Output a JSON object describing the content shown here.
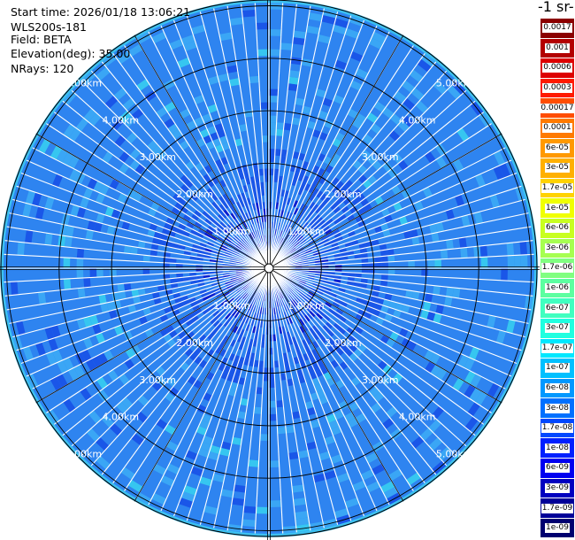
{
  "header": {
    "start_time": "Start time: 2026/01/18 13:06:21",
    "instrument": "WLS200s-181",
    "field": "Field: BETA",
    "elevation": "Elevation(deg): 35.00",
    "nrays": "NRays: 120"
  },
  "colorbar": {
    "unit_label": "-1 sr-",
    "levels": [
      {
        "label": "0.0017",
        "color": "#8b0000"
      },
      {
        "label": "0.001",
        "color": "#b30000"
      },
      {
        "label": "0.0006",
        "color": "#dd0000"
      },
      {
        "label": "0.0003",
        "color": "#ff1a00"
      },
      {
        "label": "0.00017",
        "color": "#ff4d00"
      },
      {
        "label": "0.0001",
        "color": "#ff7a00"
      },
      {
        "label": "6e-05",
        "color": "#ff9900"
      },
      {
        "label": "3e-05",
        "color": "#ffb000"
      },
      {
        "label": "1.7e-05",
        "color": "#ffd200"
      },
      {
        "label": "1e-05",
        "color": "#f0ff00"
      },
      {
        "label": "6e-06",
        "color": "#c8ff20"
      },
      {
        "label": "3e-06",
        "color": "#a6ff50"
      },
      {
        "label": "1.7e-06",
        "color": "#80ff80"
      },
      {
        "label": "1e-06",
        "color": "#5cffa0"
      },
      {
        "label": "6e-07",
        "color": "#40ffc0"
      },
      {
        "label": "3e-07",
        "color": "#20ffe0"
      },
      {
        "label": "1.7e-07",
        "color": "#00e8ff"
      },
      {
        "label": "1e-07",
        "color": "#00c0ff"
      },
      {
        "label": "6e-08",
        "color": "#0098ff"
      },
      {
        "label": "3e-08",
        "color": "#0070ff"
      },
      {
        "label": "1.7e-08",
        "color": "#0048ff"
      },
      {
        "label": "1e-08",
        "color": "#0020ff"
      },
      {
        "label": "6e-09",
        "color": "#0000f0"
      },
      {
        "label": "3e-09",
        "color": "#0000c0"
      },
      {
        "label": "1.7e-09",
        "color": "#000098"
      },
      {
        "label": "1e-09",
        "color": "#000070"
      }
    ]
  },
  "ppi": {
    "rings": [
      {
        "label": "1.00km",
        "km": 1
      },
      {
        "label": "2.00km",
        "km": 2
      },
      {
        "label": "3.00km",
        "km": 3
      },
      {
        "label": "4.00km",
        "km": 4
      },
      {
        "label": "5.00km",
        "km": 5
      }
    ],
    "max_range_km": 6,
    "spoke_angles_deg": [
      30,
      60,
      120,
      150,
      210,
      240,
      300,
      330
    ],
    "palette": {
      "base": "#2e84f0",
      "light": "#3aa6f5",
      "dark": "#1a56e8",
      "cyan": "#36c6f0",
      "deep": "#0a1fd0",
      "ring_edge": "#3cc0f0"
    }
  }
}
